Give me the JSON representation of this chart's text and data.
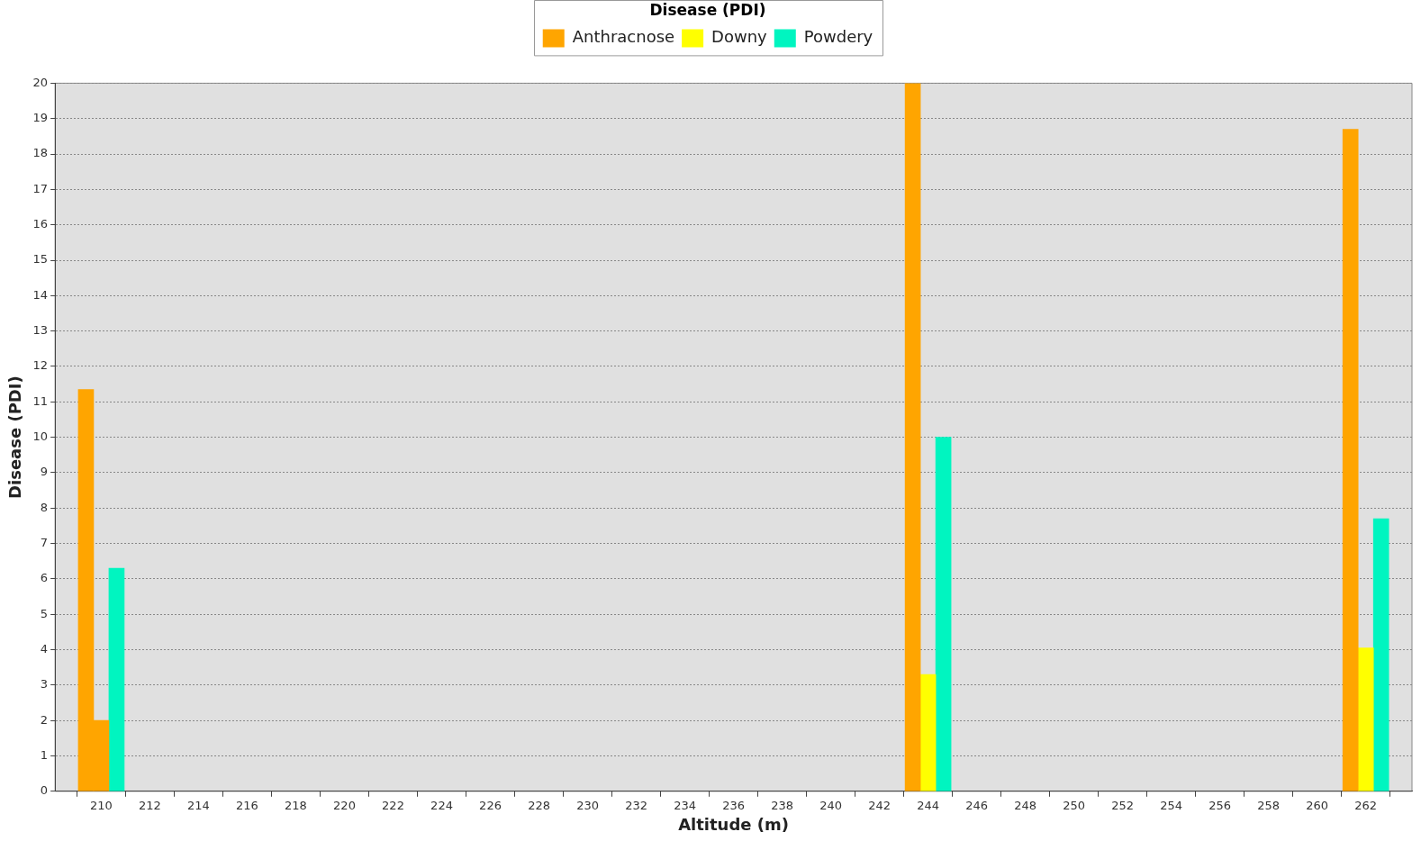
{
  "chart_data": {
    "type": "bar",
    "xlabel": "Altitude (m)",
    "ylabel": "Disease (PDI)",
    "legend_title": "Disease (PDI)",
    "legend": "top",
    "x": [
      210,
      244,
      262
    ],
    "series": [
      {
        "name": "Anthracnose",
        "color": "#ffa500",
        "values": [
          11.35,
          20,
          18.7
        ]
      },
      {
        "name": "Downy",
        "color": "#ffff00",
        "colors": [
          "#ffa500",
          "#ffff00",
          "#ffff00"
        ],
        "values": [
          2,
          3.3,
          4.05
        ]
      },
      {
        "name": "Powdery",
        "color": "#00f5c0",
        "values": [
          6.3,
          10,
          7.7
        ]
      }
    ],
    "xlim": [
      208.1,
      263.9
    ],
    "xticks": [
      210,
      212,
      214,
      216,
      218,
      220,
      222,
      224,
      226,
      228,
      230,
      232,
      234,
      236,
      238,
      240,
      242,
      244,
      246,
      248,
      250,
      252,
      254,
      256,
      258,
      260,
      262
    ],
    "ylim": [
      0,
      20
    ],
    "yticks": [
      0,
      1,
      2,
      3,
      4,
      5,
      6,
      7,
      8,
      9,
      10,
      11,
      12,
      13,
      14,
      15,
      16,
      17,
      18,
      19,
      20
    ],
    "grid": "y"
  }
}
